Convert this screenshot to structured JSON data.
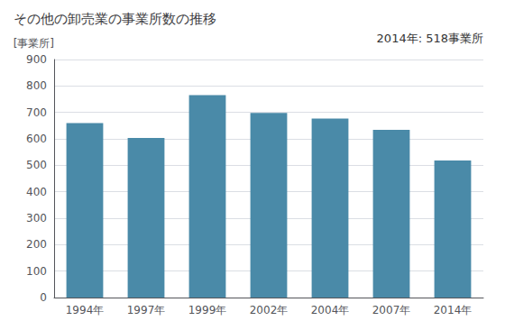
{
  "chart_data": {
    "type": "bar",
    "title": "その他の卸売業の事業所数の推移",
    "ylabel": "[事業所]",
    "annotation": "2014年: 518事業所",
    "categories": [
      "1994年",
      "1997年",
      "1999年",
      "2002年",
      "2004年",
      "2007年",
      "2014年"
    ],
    "values": [
      660,
      603,
      765,
      698,
      677,
      634,
      518
    ],
    "color": "#4a8aa8",
    "ylim": [
      0,
      900
    ],
    "yticks": [
      0,
      100,
      200,
      300,
      400,
      500,
      600,
      700,
      800,
      900
    ],
    "grid": true
  }
}
